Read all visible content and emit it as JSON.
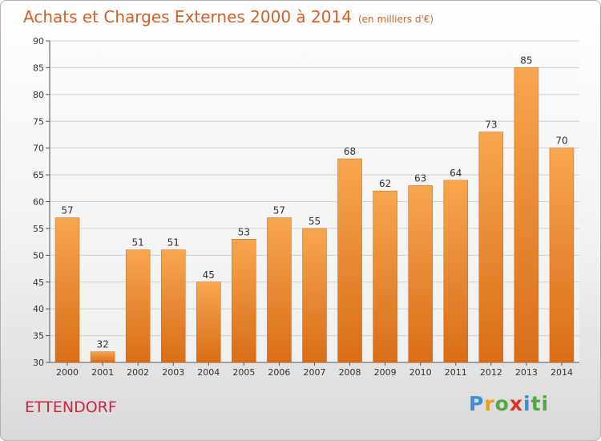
{
  "header": {
    "title": "Achats et Charges Externes 2000 à 2014",
    "unit": "(en milliers d'€)"
  },
  "commune": "ETTENDORF",
  "logo": {
    "letters": [
      "P",
      "r",
      "o",
      "x",
      "i",
      "t",
      "i"
    ],
    "colors": [
      "#3b8fd6",
      "#e8a01b",
      "#55a83a",
      "#d7342c",
      "#3b8fd6",
      "#55a83a",
      "#55a83a"
    ]
  },
  "colors": {
    "title": "#d2602a",
    "commune": "#c8283c",
    "bar_top": "#f7a64f",
    "bar_bottom": "#d96d18"
  },
  "chart_data": {
    "type": "bar",
    "title": "Achats et Charges Externes 2000 à 2014",
    "subtitle": "(en milliers d'€)",
    "categories": [
      "2000",
      "2001",
      "2002",
      "2003",
      "2004",
      "2005",
      "2006",
      "2007",
      "2008",
      "2009",
      "2010",
      "2011",
      "2012",
      "2013",
      "2014"
    ],
    "values": [
      57,
      32,
      51,
      51,
      45,
      53,
      57,
      55,
      68,
      62,
      63,
      64,
      73,
      85,
      70
    ],
    "ylim": [
      30,
      90
    ],
    "yticks": [
      30,
      35,
      40,
      45,
      50,
      55,
      60,
      65,
      70,
      75,
      80,
      85,
      90
    ],
    "grid": true,
    "xlabel": "",
    "ylabel": ""
  }
}
